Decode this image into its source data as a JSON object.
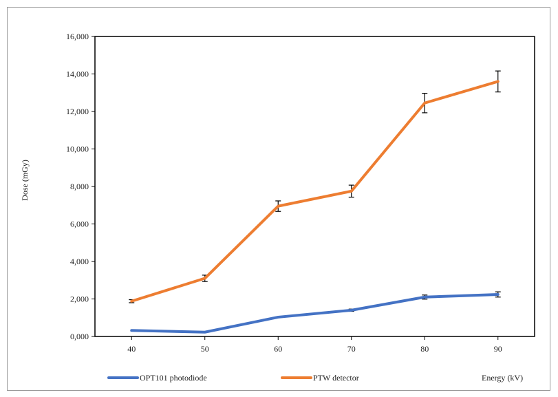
{
  "chart_data": {
    "type": "line",
    "title": "",
    "xlabel": "Energy (kV)",
    "ylabel": "Dose (mGy)",
    "categories": [
      "40",
      "50",
      "60",
      "70",
      "80",
      "90"
    ],
    "ylim": [
      0,
      16000
    ],
    "yticks": [
      "0,000",
      "2,000",
      "4,000",
      "6,000",
      "8,000",
      "10,000",
      "12,000",
      "14,000",
      "16,000"
    ],
    "grid": false,
    "legend": "bottom",
    "series": [
      {
        "name": "OPT101 photodiode",
        "color": "#4472c4",
        "values": [
          320,
          230,
          1030,
          1400,
          2100,
          2240
        ],
        "errors": [
          0,
          0,
          0,
          60,
          110,
          140
        ]
      },
      {
        "name": "PTW detector",
        "color": "#ed7d31",
        "values": [
          1880,
          3100,
          6950,
          7750,
          12450,
          13600
        ],
        "errors": [
          80,
          170,
          280,
          320,
          520,
          560
        ]
      }
    ]
  }
}
